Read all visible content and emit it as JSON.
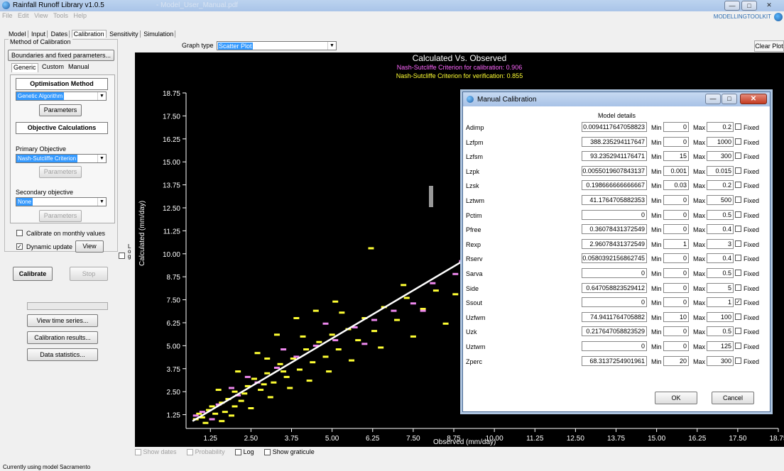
{
  "window": {
    "title": "Rainfall Runoff Library v1.0.5",
    "faded_title": "- Model_User_Manual.pdf"
  },
  "menu": [
    "File",
    "Edit",
    "View",
    "Tools",
    "Help"
  ],
  "brand": "MODELLINGTOOLKIT",
  "tabs": [
    {
      "label": "Model",
      "active": false
    },
    {
      "label": "Input",
      "active": false
    },
    {
      "label": "Dates",
      "active": false
    },
    {
      "label": "Calibration",
      "active": true
    },
    {
      "label": "Sensitivity",
      "active": false
    },
    {
      "label": "Simulation",
      "active": false
    }
  ],
  "graph": {
    "type_label": "Graph type",
    "type_value": "Scatter Plot",
    "clear_label": "Clear Plot"
  },
  "calibration": {
    "group_title": "Method of Calibration",
    "boundaries_button": "Boundaries and fixed parameters...",
    "subtabs": [
      "Generic",
      "Custom",
      "Manual"
    ],
    "optimisation_title": "Optimisation Method",
    "optimisation_value": "Genetic Algorithm",
    "parameters_label": "Parameters",
    "objective_title": "Objective Calculations",
    "primary_label": "Primary Objective",
    "primary_value": "Nash-Sutcliffe Criterion",
    "secondary_label": "Secondary objective",
    "secondary_value": "None",
    "monthly_label": "Calibrate on monthly values",
    "dynamic_label": "Dynamic update",
    "view_label": "View",
    "calibrate_label": "Calibrate",
    "stop_label": "Stop",
    "view_ts_label": "View time series...",
    "cal_results_label": "Calibration results...",
    "data_stats_label": "Data statistics..."
  },
  "plot_options": {
    "show_dates": "Show dates",
    "probability": "Probability",
    "log": "Log",
    "show_graticule": "Show graticule",
    "log_vertical": "Log"
  },
  "status": "Currently using model Sacramento",
  "chart_data": {
    "type": "scatter",
    "title": "Calculated Vs. Observed",
    "subtitle_calibration": "Nash-Sutcliffe Criterion for calibration: 0.906",
    "subtitle_verification": "Nash-Sutcliffe Criterion for verification: 0.855",
    "xlabel": "Observed (mm/day)",
    "ylabel": "Calculated (mm/day)",
    "xlim": [
      0.5,
      18.75
    ],
    "ylim": [
      0.5,
      18.75
    ],
    "xticks": [
      "1.25",
      "2.50",
      "3.75",
      "5.00",
      "6.25",
      "7.50",
      "8.75",
      "10.00",
      "11.25",
      "12.50",
      "13.75",
      "15.00",
      "16.25",
      "17.50",
      "18.75"
    ],
    "yticks": [
      "18.75",
      "17.50",
      "16.25",
      "15.00",
      "13.75",
      "12.50",
      "11.25",
      "10.00",
      "8.75",
      "7.50",
      "6.25",
      "5.00",
      "3.75",
      "2.50",
      "1.25"
    ],
    "colors": {
      "calibration": "#ffff33",
      "verification": "#ee88ee",
      "fit": "#ffffff",
      "background": "#000000"
    },
    "fit_line": [
      [
        0.7,
        0.9
      ],
      [
        9.5,
        10.1
      ]
    ],
    "series": [
      {
        "name": "calibration",
        "points": [
          [
            0.8,
            1.0
          ],
          [
            1.0,
            1.1
          ],
          [
            1.2,
            1.5
          ],
          [
            1.4,
            1.3
          ],
          [
            1.6,
            1.9
          ],
          [
            1.8,
            2.1
          ],
          [
            2.0,
            2.5
          ],
          [
            2.2,
            2.0
          ],
          [
            2.4,
            2.8
          ],
          [
            2.6,
            3.2
          ],
          [
            2.8,
            2.6
          ],
          [
            3.0,
            3.5
          ],
          [
            3.2,
            3.0
          ],
          [
            3.4,
            4.0
          ],
          [
            3.6,
            3.3
          ],
          [
            3.8,
            4.3
          ],
          [
            4.0,
            3.7
          ],
          [
            4.2,
            4.8
          ],
          [
            4.4,
            4.1
          ],
          [
            4.6,
            5.2
          ],
          [
            4.8,
            4.4
          ],
          [
            5.0,
            5.6
          ],
          [
            5.2,
            4.8
          ],
          [
            5.5,
            5.9
          ],
          [
            5.8,
            5.3
          ],
          [
            6.0,
            6.5
          ],
          [
            6.3,
            5.8
          ],
          [
            6.6,
            7.1
          ],
          [
            7.0,
            6.4
          ],
          [
            7.3,
            7.6
          ],
          [
            7.8,
            7.0
          ],
          [
            8.2,
            8.0
          ],
          [
            1.5,
            2.6
          ],
          [
            2.1,
            3.6
          ],
          [
            2.7,
            4.6
          ],
          [
            3.3,
            5.6
          ],
          [
            3.9,
            6.5
          ],
          [
            4.5,
            6.9
          ],
          [
            5.1,
            7.4
          ],
          [
            6.2,
            10.3
          ],
          [
            1.9,
            1.2
          ],
          [
            2.5,
            1.6
          ],
          [
            3.1,
            2.2
          ],
          [
            3.7,
            2.7
          ],
          [
            4.3,
            3.1
          ],
          [
            4.9,
            3.6
          ],
          [
            5.6,
            4.2
          ],
          [
            6.5,
            4.9
          ],
          [
            7.5,
            5.5
          ],
          [
            8.5,
            6.2
          ],
          [
            9.4,
            7.1
          ],
          [
            1.1,
            0.8
          ],
          [
            1.3,
            1.7
          ],
          [
            1.7,
            1.4
          ],
          [
            2.3,
            2.4
          ],
          [
            2.9,
            2.9
          ],
          [
            3.5,
            3.6
          ],
          [
            0.9,
            1.3
          ],
          [
            1.6,
            0.9
          ],
          [
            2.0,
            1.7
          ],
          [
            3.0,
            4.3
          ],
          [
            4.1,
            5.5
          ],
          [
            5.3,
            6.8
          ],
          [
            7.2,
            8.3
          ],
          [
            8.8,
            7.8
          ],
          [
            9.2,
            8.6
          ]
        ]
      },
      {
        "name": "verification",
        "points": [
          [
            1.0,
            1.4
          ],
          [
            1.5,
            1.8
          ],
          [
            2.1,
            2.3
          ],
          [
            2.7,
            3.0
          ],
          [
            3.3,
            3.8
          ],
          [
            3.9,
            4.4
          ],
          [
            4.5,
            5.0
          ],
          [
            5.1,
            5.3
          ],
          [
            5.7,
            6.0
          ],
          [
            6.3,
            6.4
          ],
          [
            6.9,
            6.9
          ],
          [
            7.5,
            7.3
          ],
          [
            8.1,
            8.4
          ],
          [
            8.8,
            8.9
          ],
          [
            9.4,
            9.1
          ],
          [
            2.4,
            3.3
          ],
          [
            3.5,
            4.8
          ],
          [
            4.8,
            6.2
          ],
          [
            6.0,
            5.1
          ],
          [
            7.8,
            6.9
          ],
          [
            0.8,
            1.2
          ],
          [
            1.3,
            1.0
          ],
          [
            1.9,
            2.7
          ],
          [
            9.0,
            9.6
          ],
          [
            9.6,
            9.3
          ]
        ]
      }
    ]
  },
  "dialog": {
    "title": "Manual Calibration",
    "header": "Model details",
    "min_label": "Min",
    "max_label": "Max",
    "fixed_label": "Fixed",
    "ok": "OK",
    "cancel": "Cancel",
    "params": [
      {
        "name": "Adimp",
        "value": "0.0094117647058823",
        "min": "0",
        "max": "0.2",
        "fixed": false
      },
      {
        "name": "Lzfpm",
        "value": "388.235294117647",
        "min": "0",
        "max": "1000",
        "fixed": false
      },
      {
        "name": "Lzfsm",
        "value": "93.2352941176471",
        "min": "15",
        "max": "300",
        "fixed": false
      },
      {
        "name": "Lzpk",
        "value": "0.0055019607843137",
        "min": "0.001",
        "max": "0.015",
        "fixed": false
      },
      {
        "name": "Lzsk",
        "value": "0.198666666666667",
        "min": "0.03",
        "max": "0.2",
        "fixed": false
      },
      {
        "name": "Lztwm",
        "value": "41.1764705882353",
        "min": "0",
        "max": "500",
        "fixed": false
      },
      {
        "name": "Pctim",
        "value": "0",
        "min": "0",
        "max": "0.5",
        "fixed": false
      },
      {
        "name": "Pfree",
        "value": "0.36078431372549",
        "min": "0",
        "max": "0.4",
        "fixed": false
      },
      {
        "name": "Rexp",
        "value": "2.96078431372549",
        "min": "1",
        "max": "3",
        "fixed": false
      },
      {
        "name": "Rserv",
        "value": "0.0580392156862745",
        "min": "0",
        "max": "0.4",
        "fixed": false
      },
      {
        "name": "Sarva",
        "value": "0",
        "min": "0",
        "max": "0.5",
        "fixed": false
      },
      {
        "name": "Side",
        "value": "0.647058823529412",
        "min": "0",
        "max": "5",
        "fixed": false
      },
      {
        "name": "Ssout",
        "value": "0",
        "min": "0",
        "max": "1",
        "fixed": true
      },
      {
        "name": "Uzfwm",
        "value": "74.9411764705882",
        "min": "10",
        "max": "100",
        "fixed": false
      },
      {
        "name": "Uzk",
        "value": "0.217647058823529",
        "min": "0",
        "max": "0.5",
        "fixed": false
      },
      {
        "name": "Uztwm",
        "value": "0",
        "min": "0",
        "max": "125",
        "fixed": false
      },
      {
        "name": "Zperc",
        "value": "68.3137254901961",
        "min": "20",
        "max": "300",
        "fixed": false
      }
    ]
  }
}
